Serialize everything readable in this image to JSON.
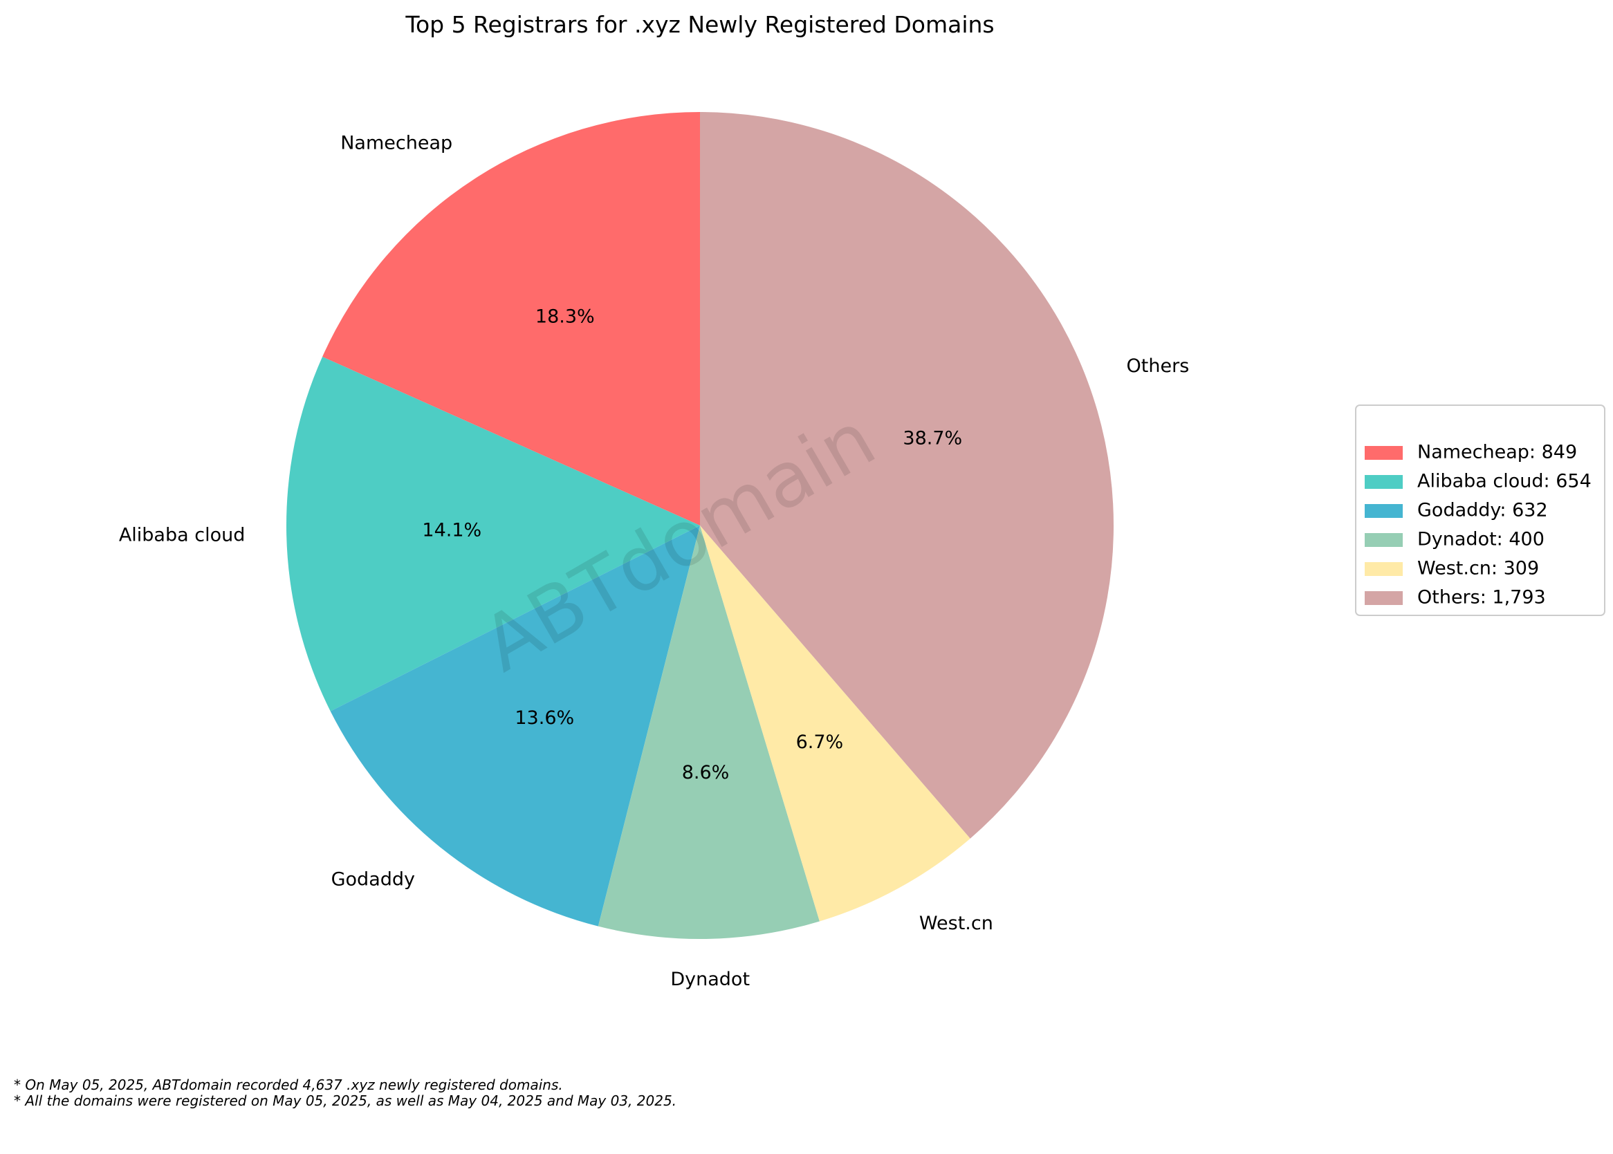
{
  "chart_data": {
    "type": "pie",
    "title": "Top 5 Registrars for .xyz Newly Registered Domains",
    "slices": [
      {
        "label": "Namecheap",
        "value": 849,
        "pct_label": "18.3%",
        "legend_label": "Namecheap: 849",
        "color": "#ff6b6b"
      },
      {
        "label": "Alibaba cloud",
        "value": 654,
        "pct_label": "14.1%",
        "legend_label": "Alibaba cloud: 654",
        "color": "#4ecdc4"
      },
      {
        "label": "Godaddy",
        "value": 632,
        "pct_label": "13.6%",
        "legend_label": "Godaddy: 632",
        "color": "#45b5d1"
      },
      {
        "label": "Dynadot",
        "value": 400,
        "pct_label": "8.6%",
        "legend_label": "Dynadot: 400",
        "color": "#96ceb4"
      },
      {
        "label": "West.cn",
        "value": 309,
        "pct_label": "6.7%",
        "legend_label": "West.cn: 309",
        "color": "#ffeaa7"
      },
      {
        "label": "Others",
        "value": 1793,
        "pct_label": "38.7%",
        "legend_label": "Others: 1,793",
        "color": "#d4a5a5"
      }
    ],
    "start_angle": "top",
    "direction": "counterclockwise",
    "legend_position": "right",
    "watermark": "ABTdomain"
  },
  "footnotes": [
    "* On May 05, 2025, ABTdomain recorded 4,637 .xyz newly registered domains.",
    "* All the domains were registered on May 05, 2025, as well as May 04, 2025 and May 03, 2025."
  ]
}
